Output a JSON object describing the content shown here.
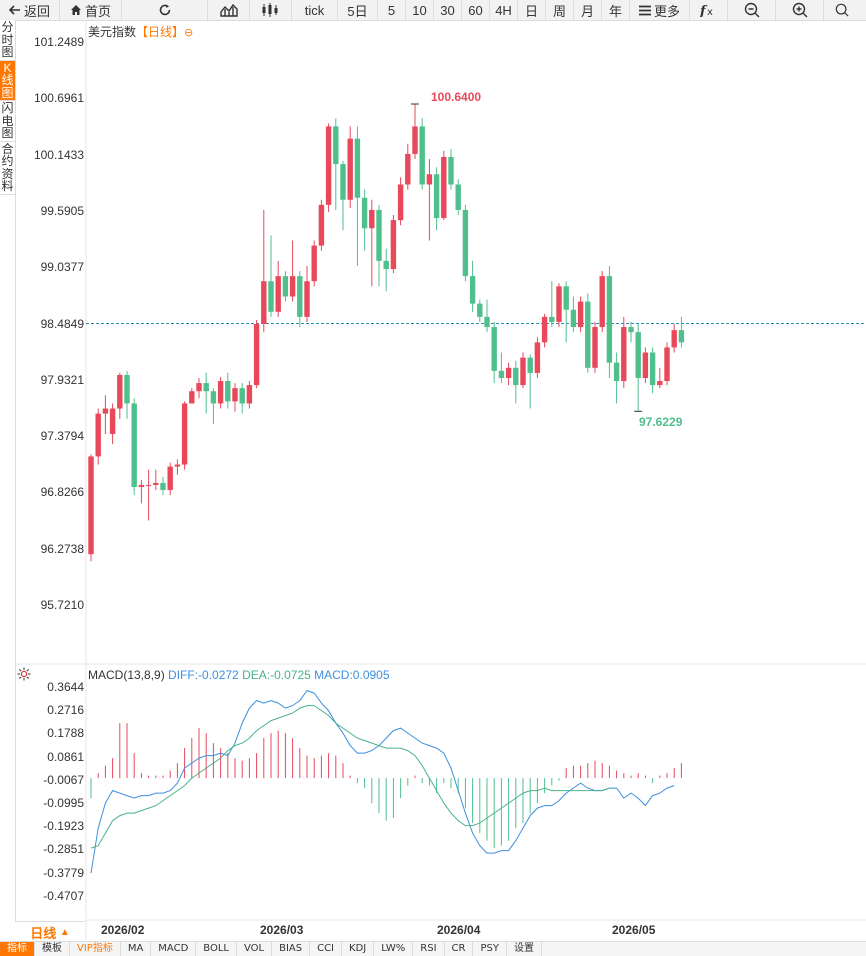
{
  "toolbar": {
    "back_label": "返回",
    "home_label": "首页",
    "tick_label": "tick",
    "five_day_label": "5日",
    "m5_label": "5",
    "m10_label": "10",
    "m30_label": "30",
    "m60_label": "60",
    "h4_label": "4H",
    "day_label": "日",
    "week_label": "周",
    "month_label": "月",
    "year_label": "年",
    "more_label": "更多"
  },
  "sidebar": {
    "items": [
      "分时图",
      "K线图",
      "闪电图",
      "合约资料"
    ],
    "active_index": 1
  },
  "chart": {
    "title": "美元指数",
    "period_tag": "【日线】",
    "y_ticks": [
      "101.2489",
      "100.6961",
      "100.1433",
      "99.5905",
      "99.0377",
      "98.4849",
      "97.9321",
      "97.3794",
      "96.8266",
      "96.2738",
      "95.7210"
    ],
    "current_price_line": 98.4849,
    "high_marker": "100.6400",
    "low_marker": "97.6229",
    "x_labels": [
      "2026/02",
      "2026/03",
      "2026/04",
      "2026/05"
    ],
    "up_color": "#e8485a",
    "down_color": "#4fbf8c"
  },
  "macd": {
    "name": "MACD(13,8,9)",
    "diff_label": "DIFF:-0.0272",
    "dea_label": "DEA:-0.0725",
    "macd_label": "MACD:0.0905",
    "y_ticks": [
      "0.3644",
      "0.2716",
      "0.1788",
      "0.0861",
      "-0.0067",
      "-0.0995",
      "-0.1923",
      "-0.2851",
      "-0.3779",
      "-0.4707"
    ],
    "diff_color": "#3d8fe0",
    "dea_color": "#49b28a"
  },
  "period_button": "日线",
  "bottom_tabs": [
    "指标",
    "模板",
    "VIP指标",
    "MA",
    "MACD",
    "BOLL",
    "VOL",
    "BIAS",
    "CCI",
    "KDJ",
    "LW%",
    "RSI",
    "CR",
    "PSY",
    "设置"
  ],
  "bottom_active_index": 0
}
